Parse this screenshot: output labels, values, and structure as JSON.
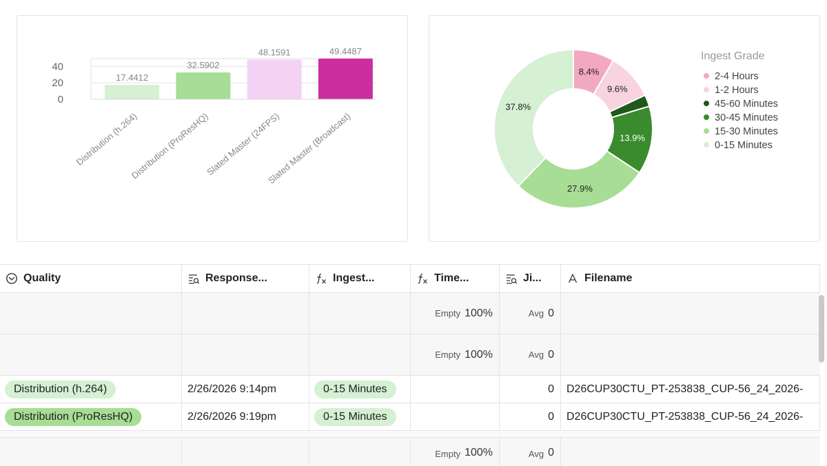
{
  "bar_chart": {
    "chart_data": {
      "type": "bar",
      "categories": [
        "Distribution (h.264)",
        "Distribution (ProResHQ)",
        "Slated Master (24FPS)",
        "Slated Master (Broadcast)"
      ],
      "values": [
        17.4412,
        32.5902,
        48.1591,
        49.4487
      ],
      "value_labels": [
        "17.4412",
        "32.5902",
        "48.1591",
        "49.4487"
      ],
      "colors": [
        "#d5f0d3",
        "#a7dd94",
        "#f4d2f4",
        "#cc2ea0"
      ],
      "yticks": [
        "0",
        "20",
        "40"
      ],
      "ylim": [
        0,
        49.4487
      ],
      "grid": true
    }
  },
  "pie_chart": {
    "legend_title": "Ingest Grade",
    "chart_data": {
      "type": "pie",
      "donut": true,
      "slices": [
        {
          "label": "2-4 Hours",
          "value": 8.4,
          "display": "8.4%",
          "color": "#f2a8c2"
        },
        {
          "label": "1-2 Hours",
          "value": 9.6,
          "display": "9.6%",
          "color": "#f7d4e0"
        },
        {
          "label": "45-60 Minutes",
          "value": 2.4,
          "display": "",
          "color": "#1e5a1a"
        },
        {
          "label": "30-45 Minutes",
          "value": 13.9,
          "display": "13.9%",
          "color": "#3a8a2e"
        },
        {
          "label": "15-30 Minutes",
          "value": 27.9,
          "display": "27.9%",
          "color": "#a7dd94"
        },
        {
          "label": "0-15 Minutes",
          "value": 37.8,
          "display": "37.8%",
          "color": "#d5f0d3"
        }
      ],
      "legend_position": "right"
    }
  },
  "table": {
    "columns": [
      {
        "label": "Quality",
        "icon": "single-select-icon"
      },
      {
        "label": "Response...",
        "icon": "lookup-icon"
      },
      {
        "label": "Ingest...",
        "icon": "formula-icon"
      },
      {
        "label": "Time...",
        "icon": "formula-icon"
      },
      {
        "label": "Ji...",
        "icon": "lookup-icon"
      },
      {
        "label": "Filename",
        "icon": "text-field-icon"
      }
    ],
    "summary_rows": [
      {
        "time_label": "Empty",
        "time_value": "100%",
        "jitter_label": "Avg",
        "jitter_value": "0"
      },
      {
        "time_label": "Empty",
        "time_value": "100%",
        "jitter_label": "Avg",
        "jitter_value": "0"
      }
    ],
    "rows": [
      {
        "quality": "Distribution (h.264)",
        "response": "2/26/2026 9:14pm",
        "ingest": "0-15 Minutes",
        "jitter": "0",
        "filename": "D26CUP30CTU_PT-253838_CUP-56_24_2026-"
      },
      {
        "quality": "Distribution (ProResHQ)",
        "response": "2/26/2026 9:19pm",
        "ingest": "0-15 Minutes",
        "jitter": "0",
        "filename": "D26CUP30CTU_PT-253838_CUP-56_24_2026-"
      }
    ],
    "bottom_summary": {
      "time_label": "Empty",
      "time_value": "100%",
      "jitter_label": "Avg",
      "jitter_value": "0"
    }
  }
}
